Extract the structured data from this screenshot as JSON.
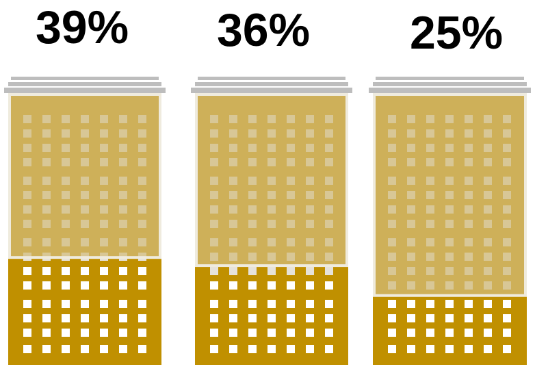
{
  "chart_data": {
    "type": "bar",
    "style": "building pictograph; lower dark-gold fill shows the share",
    "categories": [
      "",
      "",
      ""
    ],
    "values": [
      39,
      36,
      25
    ],
    "value_labels": [
      "39%",
      "36%",
      "25%"
    ],
    "unit": "%",
    "ylim": [
      0,
      100
    ],
    "grid": false,
    "legend": "none"
  },
  "colors": {
    "filled": "#c09000",
    "unfilled": "#d2bc7c",
    "unfilled_border": "#efebde",
    "window": "#ffffff",
    "window_unfilled": "#e6e2da",
    "roof": "#bdbdbd",
    "label": "#000000"
  }
}
